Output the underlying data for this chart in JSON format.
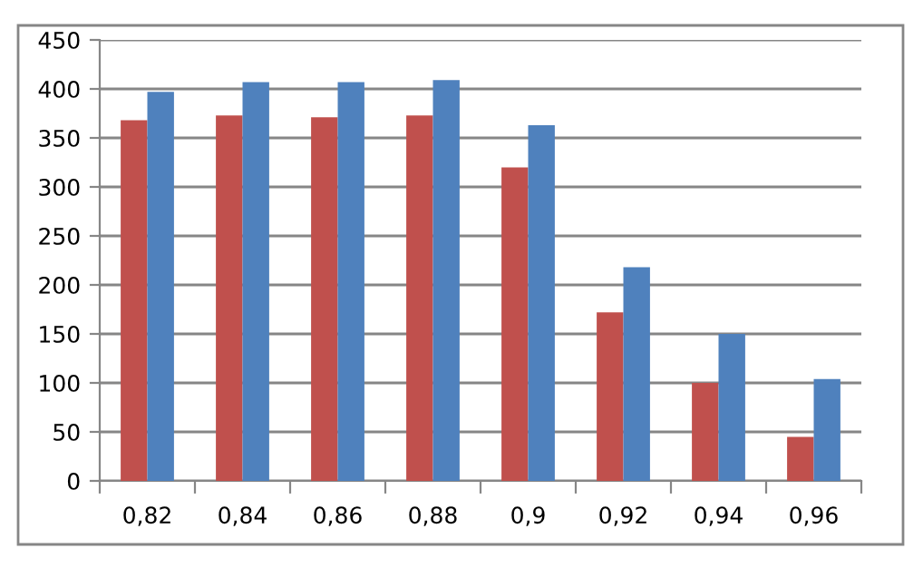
{
  "chart_data": {
    "type": "bar",
    "categories": [
      "0,82",
      "0,84",
      "0,86",
      "0,88",
      "0,9",
      "0,92",
      "0,94",
      "0,96"
    ],
    "series": [
      {
        "color": "#c0504d",
        "values": [
          368,
          373,
          371,
          373,
          320,
          172,
          100,
          45
        ]
      },
      {
        "color": "#4f81bd",
        "values": [
          397,
          407,
          407,
          409,
          363,
          218,
          150,
          104
        ]
      }
    ],
    "ylim": [
      0,
      450
    ],
    "yticks": [
      0,
      50,
      100,
      150,
      200,
      250,
      300,
      350,
      400,
      450
    ],
    "grid": "y"
  }
}
